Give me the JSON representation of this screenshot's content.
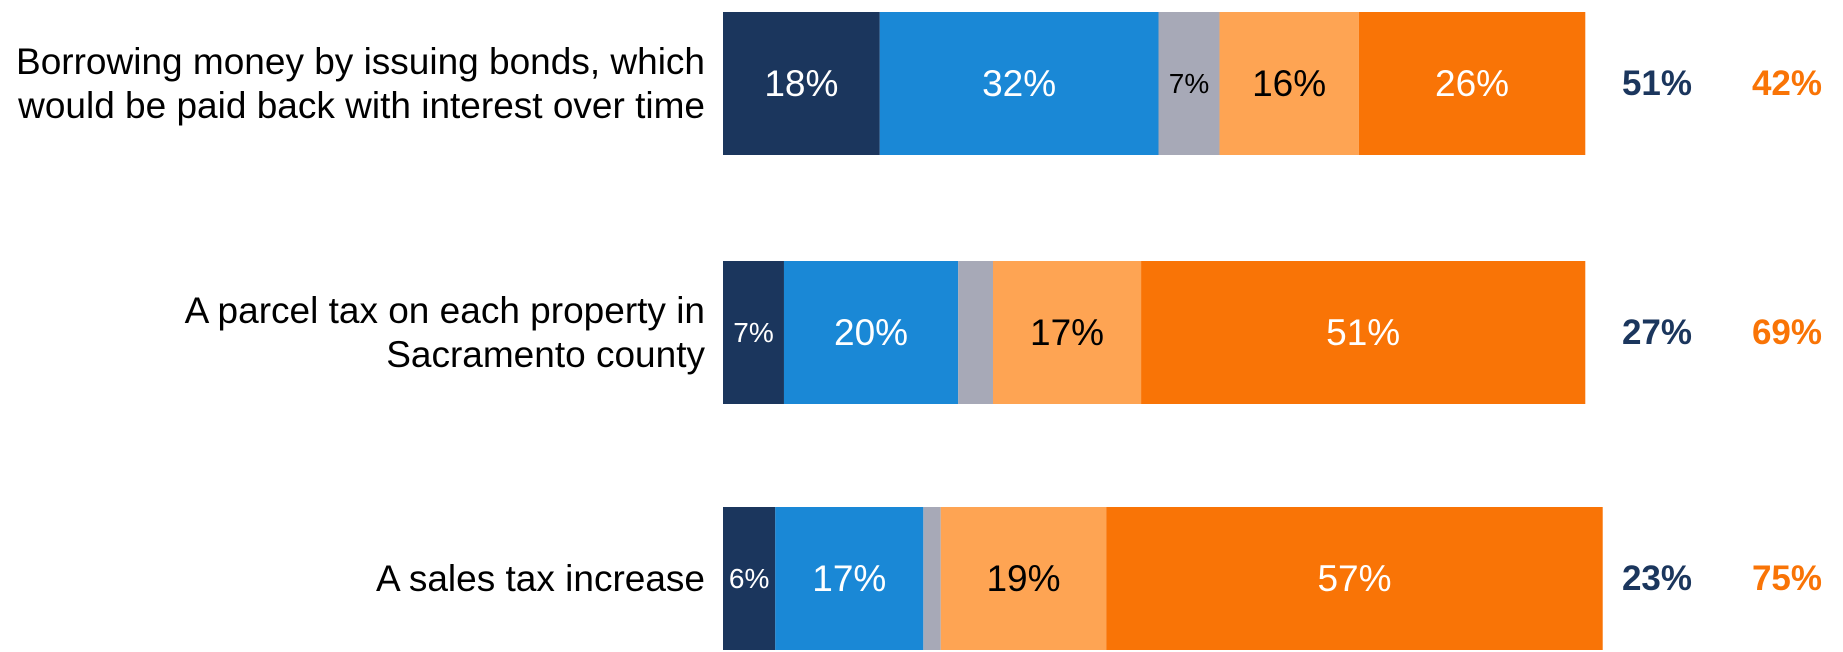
{
  "chart_data": {
    "type": "stacked-bar-horizontal",
    "categories": [
      "Borrowing money by issuing bonds, which would be paid back with interest over time",
      "A parcel tax on each property in Sacramento county",
      "A sales tax increase"
    ],
    "xlim": [
      0,
      100
    ],
    "series": [
      {
        "color": "#1b365d",
        "label_color": "#ffffff",
        "values": [
          18,
          7,
          6
        ],
        "value_labels": [
          "18%",
          "7%",
          "6%"
        ]
      },
      {
        "color": "#1a88d6",
        "label_color": "#ffffff",
        "values": [
          32,
          20,
          17
        ],
        "value_labels": [
          "32%",
          "20%",
          "17%"
        ]
      },
      {
        "color": "#a7a9b7",
        "label_color": "#000000",
        "values": [
          7,
          4,
          2
        ],
        "value_labels": [
          "7%",
          null,
          null
        ]
      },
      {
        "color": "#fea453",
        "label_color": "#000000",
        "values": [
          16,
          17,
          19
        ],
        "value_labels": [
          "16%",
          "17%",
          "19%"
        ]
      },
      {
        "color": "#f97406",
        "label_color": "#ffffff",
        "values": [
          26,
          51,
          57
        ],
        "value_labels": [
          "26%",
          "51%",
          "57%"
        ]
      }
    ],
    "totals": [
      {
        "color": "#1b365d",
        "values": [
          51,
          27,
          23
        ],
        "value_labels": [
          "51%",
          "27%",
          "23%"
        ]
      },
      {
        "color": "#f97406",
        "values": [
          42,
          69,
          75
        ],
        "value_labels": [
          "42%",
          "69%",
          "75%"
        ]
      }
    ]
  }
}
